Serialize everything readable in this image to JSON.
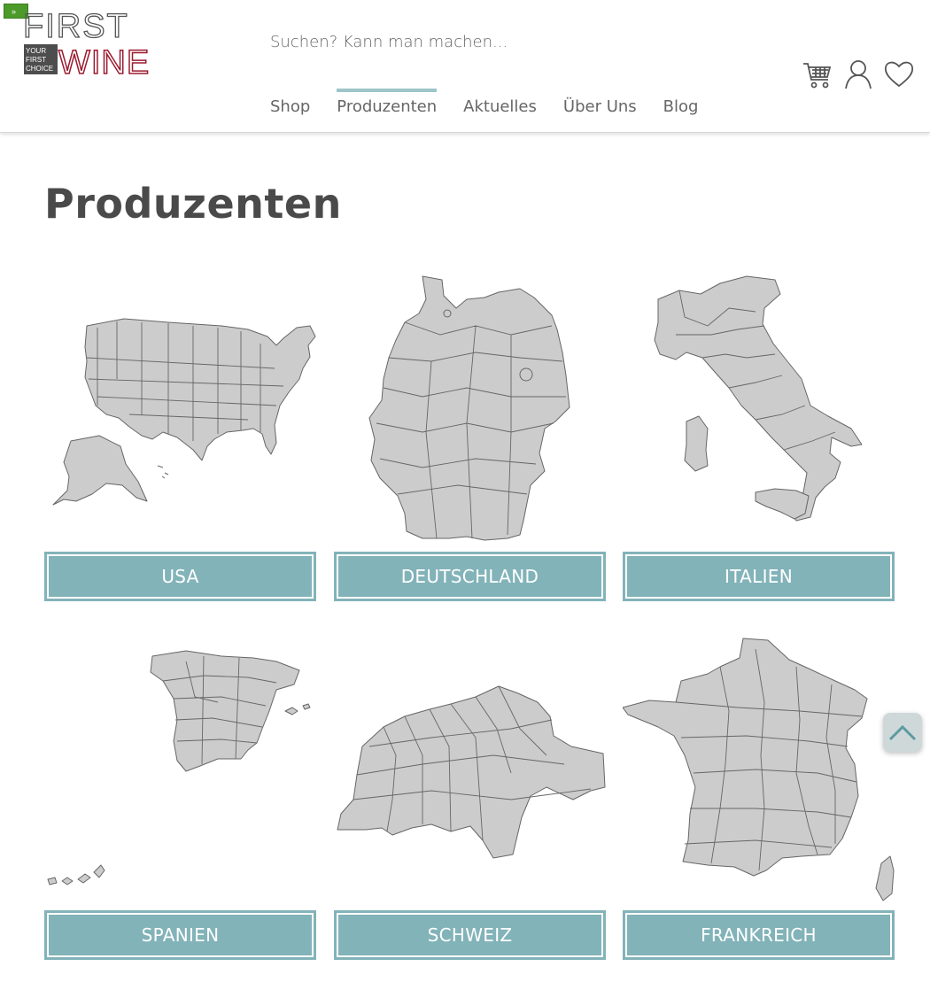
{
  "header": {
    "toggle_label": "»",
    "logo": {
      "line1": "FIRST",
      "line2": "WINE",
      "tagline": [
        "YOUR",
        "FIRST",
        "CHOICE"
      ]
    },
    "search_placeholder": "Suchen? Kann man machen..."
  },
  "nav": [
    {
      "label": "Shop",
      "active": false
    },
    {
      "label": "Produzenten",
      "active": true
    },
    {
      "label": "Aktuelles",
      "active": false
    },
    {
      "label": "Über Uns",
      "active": false
    },
    {
      "label": "Blog",
      "active": false
    }
  ],
  "icons": [
    "cart-icon",
    "user-icon",
    "heart-icon"
  ],
  "page_title": "Produzenten",
  "countries": [
    {
      "label": "USA",
      "map": "usa-map"
    },
    {
      "label": "DEUTSCHLAND",
      "map": "germany-map"
    },
    {
      "label": "ITALIEN",
      "map": "italy-map"
    },
    {
      "label": "SPANIEN",
      "map": "spain-map"
    },
    {
      "label": "SCHWEIZ",
      "map": "switzerland-map"
    },
    {
      "label": "FRANKREICH",
      "map": "france-map"
    }
  ],
  "colors": {
    "accent": "#82b3b9",
    "logo_wine": "#9b1b30",
    "map_fill": "#cccccc",
    "toggle": "#4c9a2a"
  }
}
